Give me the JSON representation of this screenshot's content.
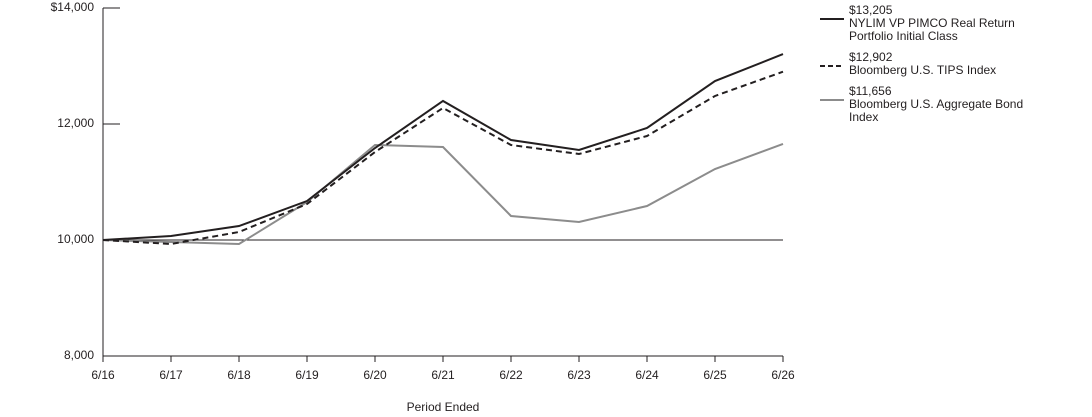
{
  "chart_data": {
    "type": "line",
    "x_label": "Period Ended",
    "categories": [
      "6/16",
      "6/17",
      "6/18",
      "6/19",
      "6/20",
      "6/21",
      "6/22",
      "6/23",
      "6/24",
      "6/25",
      "6/26"
    ],
    "series": [
      {
        "name": "NYLIM VP PIMCO Real Return Portfolio Initial Class",
        "end_label": "$13,205",
        "color": "#231f20",
        "dash": "solid",
        "values": [
          10000,
          10069,
          10241,
          10672,
          11586,
          12397,
          11724,
          11552,
          11931,
          12741,
          13205
        ]
      },
      {
        "name": "Bloomberg U.S. TIPS Index",
        "end_label": "$12,902",
        "color": "#231f20",
        "dash": "dashed",
        "values": [
          10000,
          9931,
          10138,
          10621,
          11517,
          12276,
          11638,
          11483,
          11793,
          12483,
          12902
        ]
      },
      {
        "name": "Bloomberg U.S. Aggregate Bond Index",
        "end_label": "$11,656",
        "color": "#8c8c8c",
        "dash": "solid",
        "values": [
          10000,
          9966,
          9931,
          10655,
          11638,
          11603,
          10414,
          10310,
          10586,
          11224,
          11656
        ]
      }
    ],
    "ylim": [
      8000,
      14000
    ],
    "yticks": [
      {
        "value": 8000,
        "label": "8,000"
      },
      {
        "value": 10000,
        "label": "10,000"
      },
      {
        "value": 12000,
        "label": "12,000"
      },
      {
        "value": 14000,
        "label": "$14,000"
      }
    ],
    "reference_line": 10000,
    "grid": false
  }
}
